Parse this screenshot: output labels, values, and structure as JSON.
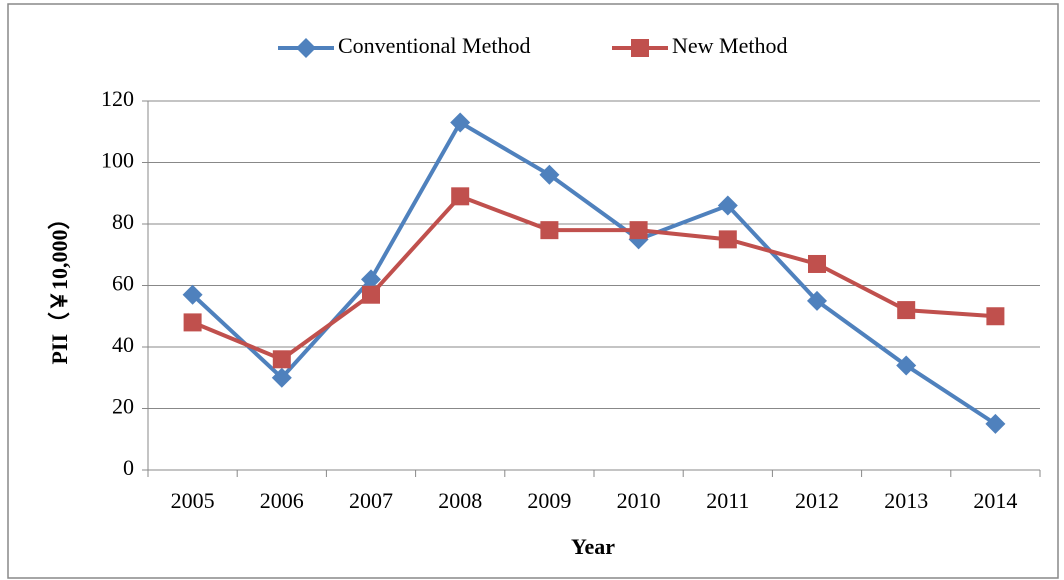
{
  "chart_data": {
    "type": "line",
    "x_label": "Year",
    "y_label": "PII（￥10,000）",
    "categories": [
      "2005",
      "2006",
      "2007",
      "2008",
      "2009",
      "2010",
      "2011",
      "2012",
      "2013",
      "2014"
    ],
    "series": [
      {
        "name": "Conventional Method",
        "color": "#4f81bd",
        "marker": "diamond",
        "values": [
          57,
          30,
          62,
          113,
          96,
          75,
          86,
          55,
          34,
          15
        ]
      },
      {
        "name": "New Method",
        "color": "#c0504d",
        "marker": "square",
        "values": [
          48,
          36,
          57,
          89,
          78,
          78,
          75,
          67,
          52,
          50
        ]
      }
    ],
    "ylim": [
      0,
      120
    ],
    "yticks": [
      0,
      20,
      40,
      60,
      80,
      100,
      120
    ],
    "grid": true,
    "legend": "top"
  }
}
